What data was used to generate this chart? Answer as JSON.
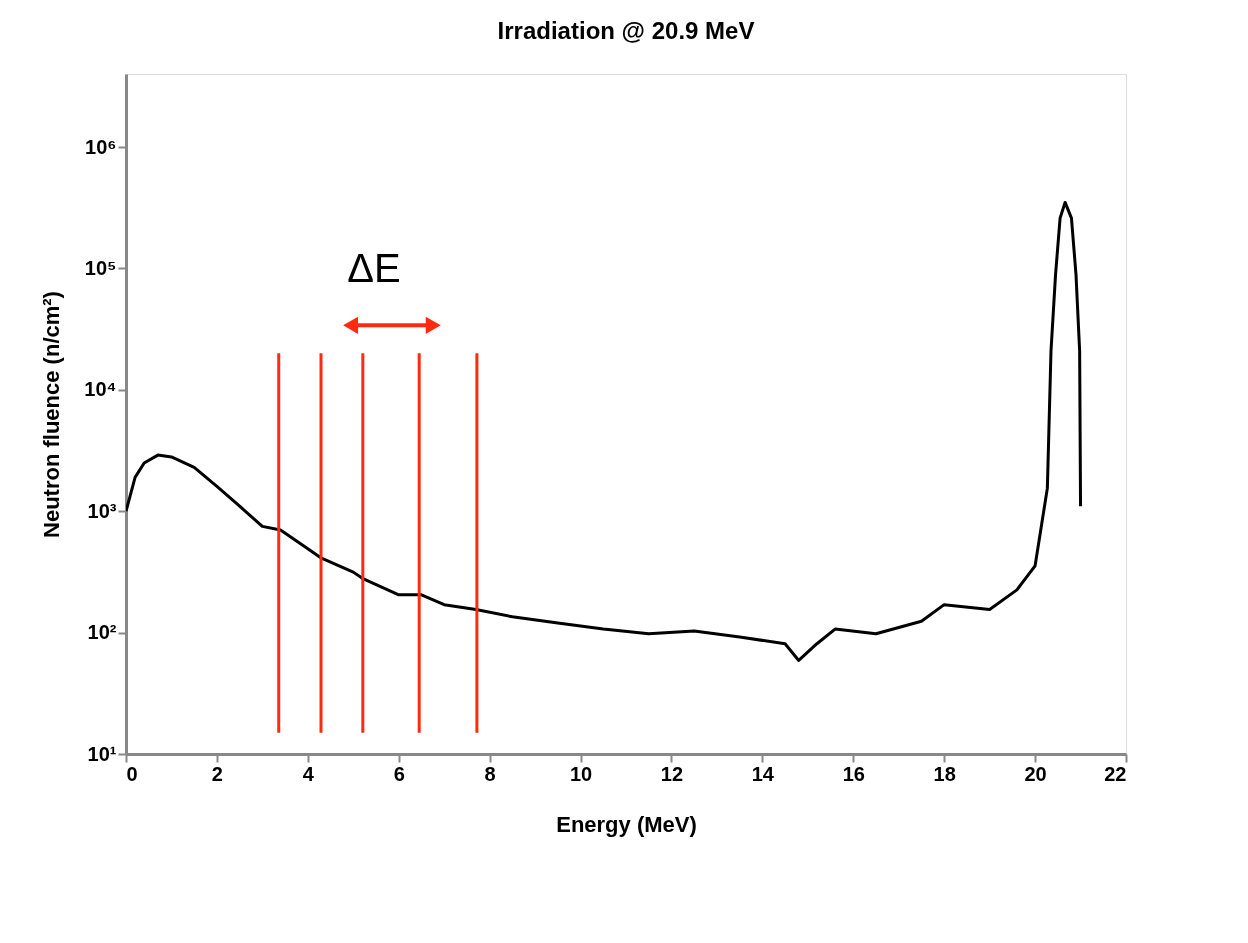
{
  "chart_data": {
    "type": "line",
    "title": "Irradiation @ 20.9 MeV",
    "xlabel": "Energy (MeV)",
    "ylabel": "Neutron fluence (n/cm²)",
    "log": "y",
    "xlim": [
      0,
      22
    ],
    "xticks": [
      0,
      2,
      4,
      6,
      8,
      10,
      12,
      14,
      16,
      18,
      20,
      22
    ],
    "ylim": [
      10,
      4000000
    ],
    "yticks": [
      {
        "value": 10,
        "label": "10¹"
      },
      {
        "value": 100,
        "label": "10²"
      },
      {
        "value": 1000,
        "label": "10³"
      },
      {
        "value": 10000,
        "label": "10⁴"
      },
      {
        "value": 100000,
        "label": "10⁵"
      },
      {
        "value": 1000000,
        "label": "10⁶"
      }
    ],
    "grid": false,
    "annotations": [
      "ΔE"
    ],
    "series": [
      {
        "color": "#000000",
        "x": [
          0.0,
          0.2,
          0.4,
          0.7,
          1.0,
          1.5,
          2.0,
          2.5,
          3.0,
          3.4,
          4.0,
          4.3,
          5.0,
          5.2,
          6.0,
          6.5,
          7.0,
          7.7,
          8.5,
          9.5,
          10.5,
          11.5,
          12.5,
          13.5,
          14.5,
          14.8,
          15.2,
          15.6,
          16.5,
          17.5,
          18.0,
          19.0,
          19.6,
          20.0,
          20.27,
          20.35,
          20.45,
          20.55,
          20.66,
          20.8,
          20.9,
          20.98,
          21.0
        ],
        "values": [
          1000,
          1900,
          2500,
          2900,
          2800,
          2300,
          1600,
          1100,
          750,
          700,
          490,
          410,
          315,
          280,
          205,
          205,
          170,
          155,
          135,
          120,
          107,
          98,
          103,
          92,
          81,
          59,
          81,
          107,
          98,
          124,
          170,
          155,
          225,
          355,
          1550,
          21000,
          89000,
          260000,
          350000,
          260000,
          89000,
          21000,
          1100
        ]
      },
      {
        "color": "#ff2a10",
        "x": [
          3.36,
          3.36
        ],
        "values": [
          15,
          20000
        ]
      },
      {
        "color": "#ff2a10",
        "x": [
          4.29,
          4.29
        ],
        "values": [
          15,
          20000
        ]
      },
      {
        "color": "#ff2a10",
        "x": [
          5.21,
          5.21
        ],
        "values": [
          15,
          20000
        ]
      },
      {
        "color": "#ff2a10",
        "x": [
          6.45,
          6.45
        ],
        "values": [
          15,
          20000
        ]
      },
      {
        "color": "#ff2a10",
        "x": [
          7.72,
          7.72
        ],
        "values": [
          15,
          20000
        ]
      },
      {
        "marker": "triangle",
        "color": "#ff2a10",
        "x": [
          4.94,
          6.76
        ],
        "values": [
          34000,
          34000
        ]
      }
    ]
  }
}
